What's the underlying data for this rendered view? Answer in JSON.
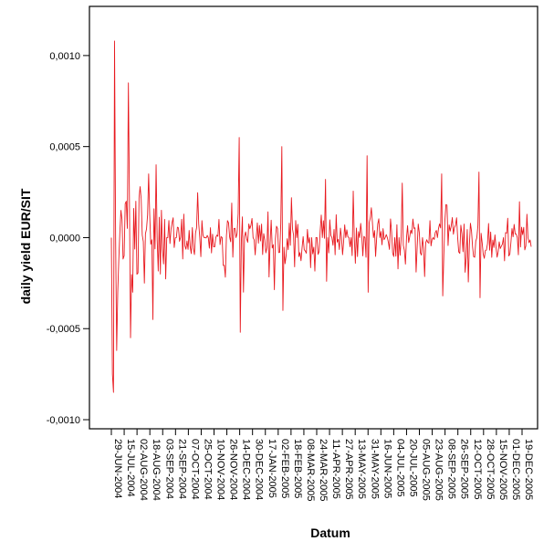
{
  "chart_data": {
    "type": "line",
    "title": "",
    "xlabel": "Datum",
    "ylabel": "daily yield EUR/SIT",
    "ylim": [
      -0.00105,
      0.00127
    ],
    "grid": false,
    "legend": "none",
    "series_color": "#e8191f",
    "y_ticks": [
      {
        "value": -0.001,
        "label": "-0,0010"
      },
      {
        "value": -0.0005,
        "label": "-0,0005"
      },
      {
        "value": 0.0,
        "label": "0,0000"
      },
      {
        "value": 0.0005,
        "label": "0,0005"
      },
      {
        "value": 0.001,
        "label": "0,0010"
      }
    ],
    "x_ticks": [
      "29-JUN-2004",
      "15-JUL-2004",
      "02-AUG-2004",
      "18-AUG-2004",
      "03-SEP-2004",
      "21-SEP-2004",
      "07-OCT-2004",
      "25-OCT-2004",
      "10-NOV-2004",
      "26-NOV-2004",
      "14-DEC-2004",
      "30-DEC-2004",
      "17-JAN-2005",
      "02-FEB-2005",
      "18-FEB-2005",
      "08-MAR-2005",
      "24-MAR-2005",
      "11-APR-2005",
      "27-APR-2005",
      "13-MAY-2005",
      "31-MAY-2005",
      "16-JUN-2005",
      "04-JUL-2005",
      "20-JUL-2005",
      "05-AUG-2005",
      "23-AUG-2005",
      "08-SEP-2005",
      "26-SEP-2005",
      "12-OCT-2005",
      "28-OCT-2005",
      "15-NOV-2005",
      "01-DEC-2005",
      "19-DEC-2005"
    ],
    "n_obs": 395,
    "anchors": [
      [
        0,
        0.0
      ],
      [
        1,
        -0.00075
      ],
      [
        2,
        -0.00085
      ],
      [
        3,
        0.00108
      ],
      [
        4,
        0.0
      ],
      [
        5,
        -0.00062
      ],
      [
        6,
        -0.0003
      ],
      [
        7,
        -0.00012
      ],
      [
        8,
        3e-05
      ],
      [
        9,
        0.00015
      ],
      [
        10,
        0.0001
      ],
      [
        12,
        -0.0001
      ],
      [
        14,
        0.0002
      ],
      [
        16,
        0.00085
      ],
      [
        18,
        -0.00055
      ],
      [
        20,
        -0.0003
      ],
      [
        23,
        0.0002
      ],
      [
        27,
        0.00028
      ],
      [
        31,
        -0.00025
      ],
      [
        35,
        0.00035
      ],
      [
        39,
        -0.00045
      ],
      [
        42,
        0.0004
      ],
      [
        46,
        -0.0002
      ],
      [
        50,
        0.0001
      ],
      [
        120,
        0.00055
      ],
      [
        121,
        -0.00052
      ],
      [
        160,
        0.0005
      ],
      [
        161,
        -0.0004
      ],
      [
        201,
        0.00032
      ],
      [
        202,
        -0.00024
      ],
      [
        240,
        0.00045
      ],
      [
        241,
        -0.0003
      ],
      [
        310,
        0.00035
      ],
      [
        311,
        -0.00032
      ],
      [
        345,
        0.00036
      ],
      [
        346,
        -0.00033
      ],
      [
        394,
        -5e-05
      ]
    ],
    "noise_seed": 7
  }
}
